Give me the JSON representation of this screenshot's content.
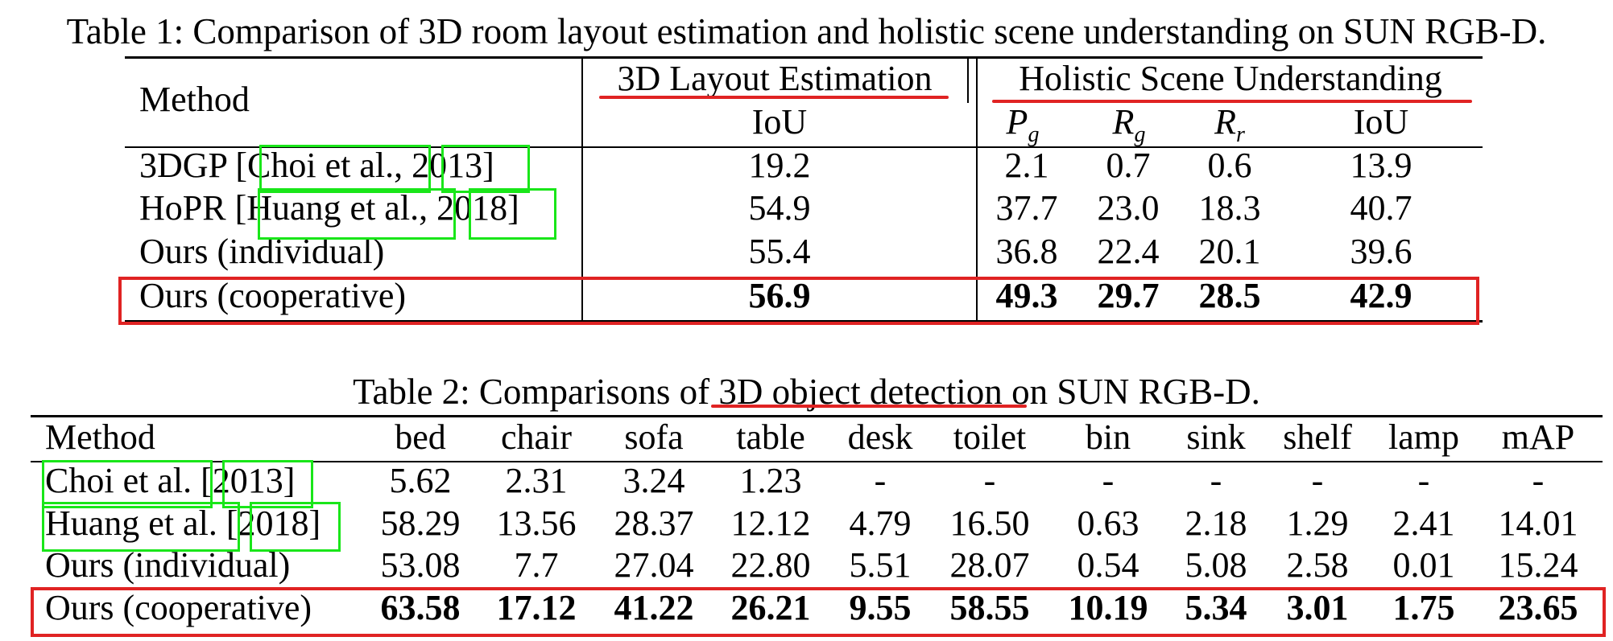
{
  "table1": {
    "caption": "Table 1: Comparison of 3D room layout estimation and holistic scene understanding on SUN RGB-D.",
    "header": {
      "method": "Method",
      "group_layout": "3D Layout Estimation",
      "group_holistic": "Holistic Scene Understanding",
      "sub_iou_layout": "IoU",
      "sub_pg": "P",
      "sub_pg_sub": "g",
      "sub_rg": "R",
      "sub_rg_sub": "g",
      "sub_rr": "R",
      "sub_rr_sub": "r",
      "sub_iou_holistic": "IoU"
    },
    "rows": [
      {
        "method_prefix": "3DGP [",
        "cite_author": "Choi et al.",
        "cite_sep": ", ",
        "cite_year": "2013",
        "method_suffix": "]",
        "iou_layout": "19.2",
        "pg": "2.1",
        "rg": "0.7",
        "rr": "0.6",
        "iou_holistic": "13.9"
      },
      {
        "method_prefix": "HoPR [",
        "cite_author": "Huang et al.",
        "cite_sep": ", ",
        "cite_year": "2018",
        "method_suffix": "]",
        "iou_layout": "54.9",
        "pg": "37.7",
        "rg": "23.0",
        "rr": "18.3",
        "iou_holistic": "40.7"
      },
      {
        "method": "Ours (individual)",
        "iou_layout": "55.4",
        "pg": "36.8",
        "rg": "22.4",
        "rr": "20.1",
        "iou_holistic": "39.6"
      },
      {
        "method": "Ours (cooperative)",
        "iou_layout": "56.9",
        "pg": "49.3",
        "rg": "29.7",
        "rr": "28.5",
        "iou_holistic": "42.9"
      }
    ]
  },
  "table2": {
    "caption_prefix": "Table 2: Comparisons of ",
    "caption_highlight": "3D object detection",
    "caption_suffix": " on SUN RGB-D.",
    "columns": [
      "Method",
      "bed",
      "chair",
      "sofa",
      "table",
      "desk",
      "toilet",
      "bin",
      "sink",
      "shelf",
      "lamp",
      "mAP"
    ],
    "rows": [
      {
        "method_author": "Choi et al.",
        "method_sep": " [",
        "method_year": "2013",
        "method_suffix": "]",
        "values": [
          "5.62",
          "2.31",
          "3.24",
          "1.23",
          "-",
          "-",
          "-",
          "-",
          "-",
          "-",
          "-"
        ]
      },
      {
        "method_author": "Huang et al.",
        "method_sep": " [",
        "method_year": "2018",
        "method_suffix": "]",
        "values": [
          "58.29",
          "13.56",
          "28.37",
          "12.12",
          "4.79",
          "16.50",
          "0.63",
          "2.18",
          "1.29",
          "2.41",
          "14.01"
        ]
      },
      {
        "method": "Ours (individual)",
        "values": [
          "53.08",
          "7.7",
          "27.04",
          "22.80",
          "5.51",
          "28.07",
          "0.54",
          "5.08",
          "2.58",
          "0.01",
          "15.24"
        ]
      },
      {
        "method": "Ours (cooperative)",
        "values": [
          "63.58",
          "17.12",
          "41.22",
          "26.21",
          "9.55",
          "58.55",
          "10.19",
          "5.34",
          "3.01",
          "1.75",
          "23.65"
        ]
      }
    ]
  },
  "annotation_colors": {
    "citation_box": "#19e619",
    "highlight": "#e02323"
  }
}
